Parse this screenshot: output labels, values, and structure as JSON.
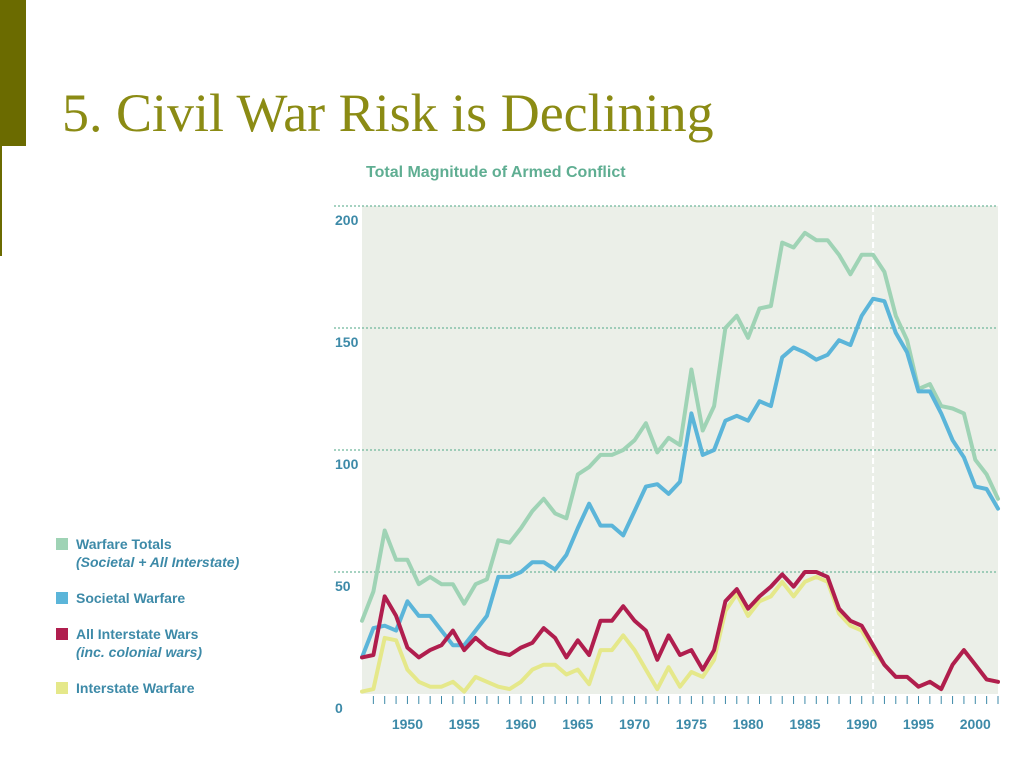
{
  "slide": {
    "title": "5. Civil War Risk is Declining"
  },
  "colors": {
    "accent_bar": "#6b6b00",
    "title": "#8b8b14",
    "plot_bg": "#ebefe8",
    "grid": "#6fb69c",
    "axis_text": "#3d8aa8"
  },
  "legend": [
    {
      "label": "Warfare Totals",
      "sub": "(Societal + All Interstate)",
      "color": "#9fd3b5"
    },
    {
      "label": "Societal Warfare",
      "sub": "",
      "color": "#5bb5d9"
    },
    {
      "label": "All Interstate Wars",
      "sub": "(inc. colonial wars)",
      "color": "#b01e4e"
    },
    {
      "label": "Interstate Warfare",
      "sub": "",
      "color": "#e5e88a"
    }
  ],
  "chart_data": {
    "type": "line",
    "title": "Total Magnitude of Armed Conflict",
    "xlabel": "",
    "ylabel": "",
    "xlim": [
      1946,
      2002
    ],
    "ylim": [
      0,
      200
    ],
    "x_ticks": [
      1950,
      1955,
      1960,
      1965,
      1970,
      1975,
      1980,
      1985,
      1990,
      1995,
      2000
    ],
    "y_ticks": [
      0,
      50,
      100,
      150,
      200
    ],
    "grid": true,
    "legend_position": "left",
    "reference_line_x": 1991,
    "x": [
      1946,
      1947,
      1948,
      1949,
      1950,
      1951,
      1952,
      1953,
      1954,
      1955,
      1956,
      1957,
      1958,
      1959,
      1960,
      1961,
      1962,
      1963,
      1964,
      1965,
      1966,
      1967,
      1968,
      1969,
      1970,
      1971,
      1972,
      1973,
      1974,
      1975,
      1976,
      1977,
      1978,
      1979,
      1980,
      1981,
      1982,
      1983,
      1984,
      1985,
      1986,
      1987,
      1988,
      1989,
      1990,
      1991,
      1992,
      1993,
      1994,
      1995,
      1996,
      1997,
      1998,
      1999,
      2000,
      2001,
      2002
    ],
    "series": [
      {
        "name": "Warfare Totals",
        "color": "#9fd3b5",
        "values": [
          30,
          42,
          67,
          55,
          55,
          45,
          48,
          45,
          45,
          37,
          45,
          47,
          63,
          62,
          68,
          75,
          80,
          74,
          72,
          90,
          93,
          98,
          98,
          100,
          104,
          111,
          99,
          105,
          102,
          133,
          108,
          118,
          150,
          155,
          146,
          158,
          159,
          185,
          183,
          189,
          186,
          186,
          180,
          172,
          180,
          180,
          173,
          155,
          145,
          125,
          127,
          118,
          117,
          115,
          96,
          90,
          80
        ]
      },
      {
        "name": "Societal Warfare",
        "color": "#5bb5d9",
        "values": [
          15,
          27,
          28,
          26,
          38,
          32,
          32,
          26,
          20,
          20,
          26,
          32,
          48,
          48,
          50,
          54,
          54,
          51,
          57,
          68,
          78,
          69,
          69,
          65,
          75,
          85,
          86,
          82,
          87,
          115,
          98,
          100,
          112,
          114,
          112,
          120,
          118,
          138,
          142,
          140,
          137,
          139,
          145,
          143,
          155,
          162,
          161,
          148,
          140,
          124,
          124,
          115,
          104,
          97,
          85,
          84,
          76
        ]
      },
      {
        "name": "All Interstate Wars",
        "color": "#b01e4e",
        "values": [
          15,
          16,
          40,
          32,
          19,
          15,
          18,
          20,
          26,
          18,
          23,
          19,
          17,
          16,
          19,
          21,
          27,
          23,
          15,
          22,
          16,
          30,
          30,
          36,
          30,
          26,
          14,
          24,
          16,
          18,
          10,
          18,
          38,
          43,
          35,
          40,
          44,
          49,
          44,
          50,
          50,
          48,
          35,
          30,
          28,
          20,
          12,
          7,
          7,
          3,
          5,
          2,
          12,
          18,
          12,
          6,
          5
        ]
      },
      {
        "name": "Interstate Warfare",
        "color": "#e5e88a",
        "values": [
          1,
          2,
          23,
          22,
          10,
          5,
          3,
          3,
          5,
          1,
          7,
          5,
          3,
          2,
          5,
          10,
          12,
          12,
          8,
          10,
          4,
          18,
          18,
          24,
          18,
          10,
          2,
          11,
          3,
          9,
          7,
          14,
          34,
          41,
          32,
          38,
          40,
          46,
          40,
          46,
          48,
          46,
          33,
          28,
          26,
          18,
          12,
          7,
          7,
          3,
          5,
          2,
          12,
          18,
          12,
          6,
          5
        ]
      }
    ]
  }
}
